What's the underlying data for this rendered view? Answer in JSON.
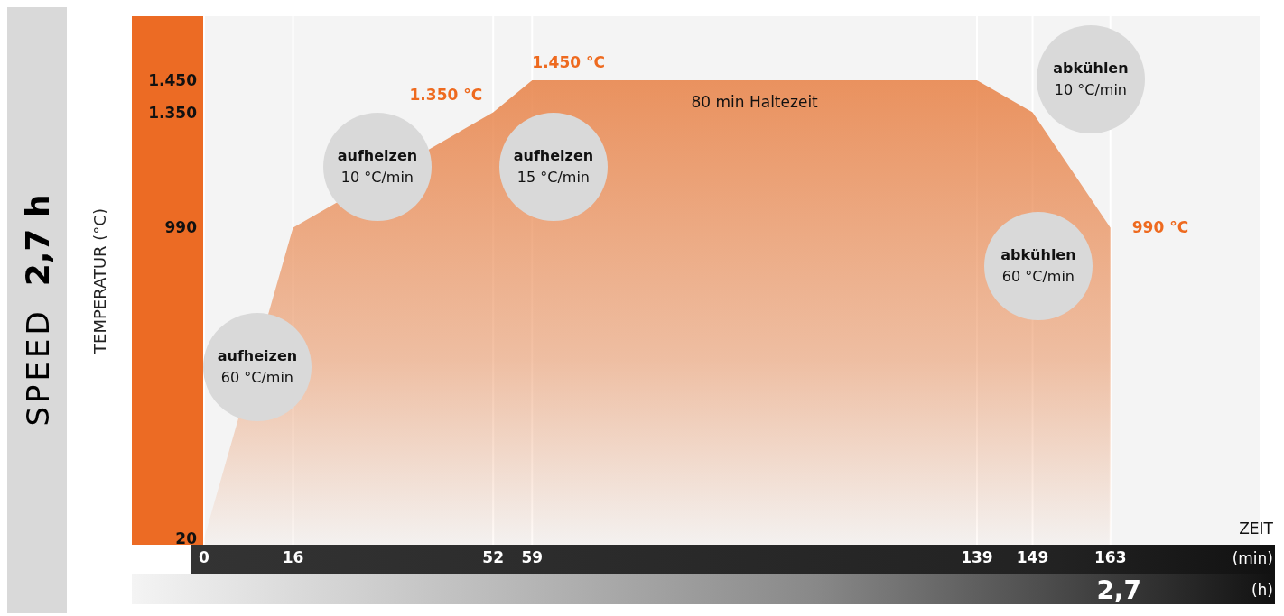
{
  "chart_data": {
    "type": "area",
    "title": "SPEED",
    "subtitle": "2,7 h",
    "ylabel": "TEMPERATUR (°C)",
    "xlabel": "ZEIT",
    "x": [
      0,
      16,
      52,
      59,
      139,
      149,
      163
    ],
    "series": [
      {
        "color": "#e8844a",
        "values": [
          20,
          990,
          1350,
          1450,
          1450,
          1350,
          990
        ]
      }
    ],
    "xlim": [
      0,
      190
    ],
    "xticks": [
      0,
      16,
      52,
      59,
      139,
      149,
      163
    ],
    "ylim": [
      0,
      1650
    ],
    "yticks": [
      20,
      990,
      {
        "value": 1350,
        "label": "1.350"
      },
      {
        "value": 1450,
        "label": "1.450"
      }
    ],
    "grid": "x",
    "legend": false,
    "annotations": [
      "(min)",
      "2,7",
      "(h)",
      "aufheizen\n60 °C/min",
      "aufheizen\n10 °C/min",
      "aufheizen\n15 °C/min",
      "abkühlen\n10 °C/min",
      "abkühlen\n60 °C/min",
      {
        "text": "80 min Haltezeit",
        "x": 99,
        "y": 1450
      },
      {
        "text": "1.350 °C",
        "x": 52,
        "y": 1350
      },
      {
        "text": "1.450 °C",
        "x": 59,
        "y": 1450
      },
      {
        "text": "990 °C",
        "x": 163,
        "y": 990
      }
    ]
  }
}
